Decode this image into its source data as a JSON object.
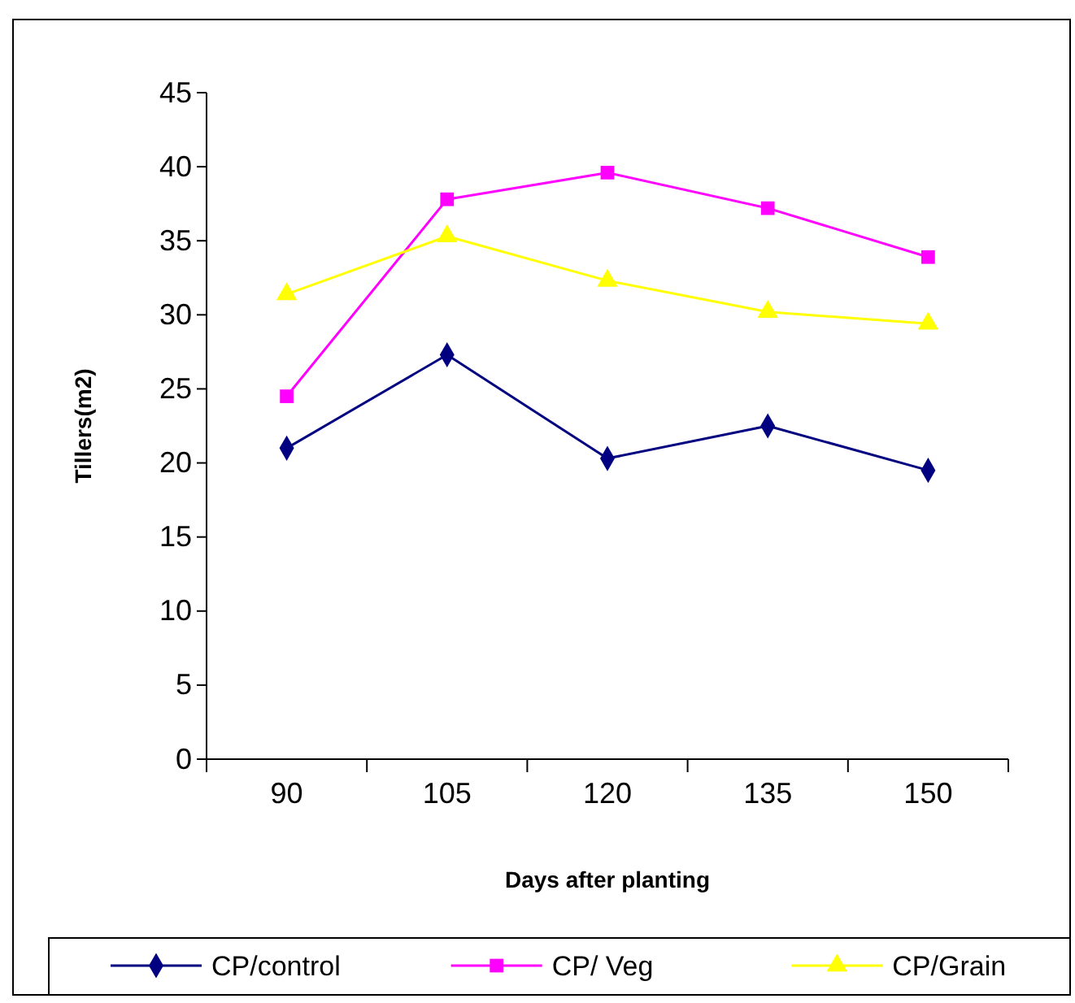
{
  "chart_data": {
    "type": "line",
    "xlabel": "Days after planting",
    "ylabel": "Tillers(m2)",
    "categories": [
      "90",
      "105",
      "120",
      "135",
      "150"
    ],
    "series": [
      {
        "name": "CP/control",
        "color": "#000080",
        "marker": "diamond",
        "values": [
          21.0,
          27.3,
          20.3,
          22.5,
          19.5
        ]
      },
      {
        "name": "CP/ Veg",
        "color": "#ff00ff",
        "marker": "square",
        "values": [
          24.5,
          37.8,
          39.6,
          37.2,
          33.9
        ]
      },
      {
        "name": "CP/Grain",
        "color": "#ffff00",
        "marker": "triangle",
        "values": [
          31.4,
          35.3,
          32.3,
          30.2,
          29.4
        ]
      }
    ],
    "ylim": [
      0,
      45
    ],
    "yticks": [
      0,
      5,
      10,
      15,
      20,
      25,
      30,
      35,
      40,
      45
    ],
    "grid": false,
    "legend": "bottom"
  }
}
